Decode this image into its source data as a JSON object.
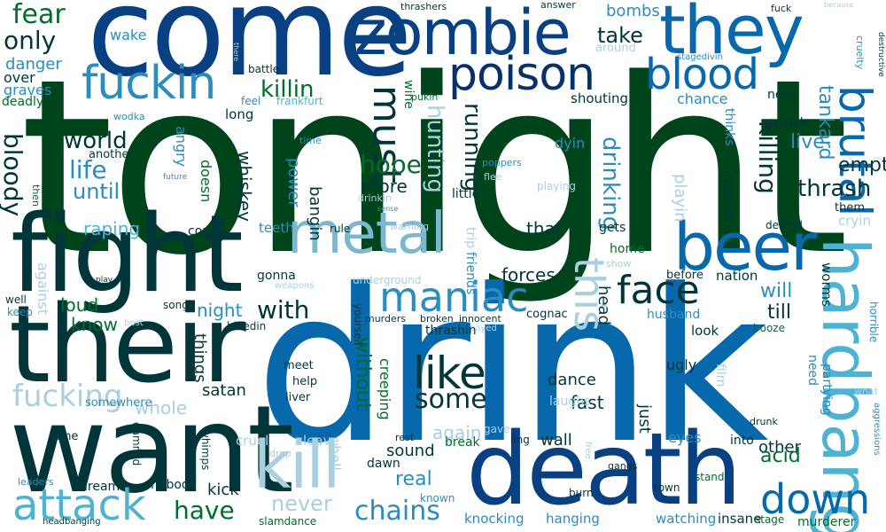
{
  "palette": {
    "darkest": "#00441b",
    "deep_green": "#003d2e",
    "navy": "#084081",
    "blue": "#0868ac",
    "teal": "#2b8cbe",
    "light_teal": "#4eb3d3",
    "pale": "#7bccc4",
    "paler": "#a8ddb5",
    "green": "#238b45"
  },
  "words": [
    {
      "text": "tonight",
      "color": "#00441b",
      "rot": 0
    },
    {
      "text": "drink",
      "color": "#0868ac",
      "rot": 0
    },
    {
      "text": "come",
      "color": "#084081",
      "rot": 0
    },
    {
      "text": "want",
      "color": "#00363a",
      "rot": 0
    },
    {
      "text": "their",
      "color": "#00363a",
      "rot": 0
    },
    {
      "text": "fight",
      "color": "#00363a",
      "rot": 0
    },
    {
      "text": "death",
      "color": "#084081",
      "rot": 0
    },
    {
      "text": "zombie",
      "color": "#084081",
      "rot": 0
    },
    {
      "text": "they",
      "color": "#0868ac",
      "rot": 0
    },
    {
      "text": "hardbang",
      "color": "#4eb3d3",
      "rot": 90
    },
    {
      "text": "beer",
      "color": "#0868ac",
      "rot": 0
    },
    {
      "text": "metal",
      "color": "#7bb8d0",
      "rot": 0
    },
    {
      "text": "kill",
      "color": "#a8d0e0",
      "rot": 0
    },
    {
      "text": "poison",
      "color": "#08306b",
      "rot": 0
    },
    {
      "text": "blood",
      "color": "#0868ac",
      "rot": 0
    },
    {
      "text": "fuckin",
      "color": "#2b8cbe",
      "rot": 0
    },
    {
      "text": "brutal",
      "color": "#0868ac",
      "rot": 90
    },
    {
      "text": "like",
      "color": "#00363a",
      "rot": 0
    },
    {
      "text": "maniac",
      "color": "#2b8cbe",
      "rot": 0
    },
    {
      "text": "attack",
      "color": "#4eb3d3",
      "rot": 0
    },
    {
      "text": "down",
      "color": "#0868ac",
      "rot": 0
    },
    {
      "text": "face",
      "color": "#00363a",
      "rot": 0
    },
    {
      "text": "this",
      "color": "#a8d0e0",
      "rot": 90
    },
    {
      "text": "must",
      "color": "#00363a",
      "rot": 90
    },
    {
      "text": "fucking",
      "color": "#a8d0e0",
      "rot": 0
    },
    {
      "text": "chains",
      "color": "#2b8cbe",
      "rot": 0
    },
    {
      "text": "never",
      "color": "#a8d0e0",
      "rot": 0
    },
    {
      "text": "have",
      "color": "#006d2c",
      "rot": 0
    },
    {
      "text": "some",
      "color": "#00363a",
      "rot": 0
    },
    {
      "text": "with",
      "color": "#00363a",
      "rot": 0
    },
    {
      "text": "killin",
      "color": "#006d2c",
      "rot": 0
    },
    {
      "text": "fear",
      "color": "#006d2c",
      "rot": 0
    },
    {
      "text": "only",
      "color": "#00363a",
      "rot": 0
    },
    {
      "text": "world",
      "color": "#00363a",
      "rot": 0
    },
    {
      "text": "life",
      "color": "#2b8cbe",
      "rot": 0
    },
    {
      "text": "bloody",
      "color": "#00363a",
      "rot": 90
    },
    {
      "text": "until",
      "color": "#2b8cbe",
      "rot": 0
    },
    {
      "text": "hope",
      "color": "#006d2c",
      "rot": 0
    },
    {
      "text": "more",
      "color": "#00363a",
      "rot": 0
    },
    {
      "text": "running",
      "color": "#00363a",
      "rot": 90
    },
    {
      "text": "hunting",
      "color": "#a8d0e0",
      "rot": 90
    },
    {
      "text": "drinking",
      "color": "#2b8cbe",
      "rot": 90
    },
    {
      "text": "killing",
      "color": "#00363a",
      "rot": 90
    },
    {
      "text": "thrash",
      "color": "#00363a",
      "rot": 0
    },
    {
      "text": "empty",
      "color": "#00363a",
      "rot": 0
    },
    {
      "text": "live",
      "color": "#2b8cbe",
      "rot": 0
    },
    {
      "text": "tankard",
      "color": "#2b8cbe",
      "rot": 90
    },
    {
      "text": "take",
      "color": "#00363a",
      "rot": 0
    },
    {
      "text": "bombs",
      "color": "#2b8cbe",
      "rot": 0
    },
    {
      "text": "wake",
      "color": "#2b8cbe",
      "rot": 0
    },
    {
      "text": "danger",
      "color": "#2b8cbe",
      "rot": 0
    },
    {
      "text": "over",
      "color": "#00363a",
      "rot": 0
    },
    {
      "text": "graves",
      "color": "#2b8cbe",
      "rot": 0
    },
    {
      "text": "deadly",
      "color": "#006d2c",
      "rot": 0
    },
    {
      "text": "wodka",
      "color": "#2b8cbe",
      "rot": 0
    },
    {
      "text": "another",
      "color": "#00363a",
      "rot": 0
    },
    {
      "text": "angry",
      "color": "#2b8cbe",
      "rot": 90
    },
    {
      "text": "doesn",
      "color": "#006d2c",
      "rot": 90
    },
    {
      "text": "whiskey",
      "color": "#00363a",
      "rot": 90
    },
    {
      "text": "power",
      "color": "#2b8cbe",
      "rot": 90
    },
    {
      "text": "bangin",
      "color": "#00363a",
      "rot": 90
    },
    {
      "text": "long",
      "color": "#00363a",
      "rot": 0
    },
    {
      "text": "feel",
      "color": "#2b8cbe",
      "rot": 0
    },
    {
      "text": "frankfurt",
      "color": "#4eb3d3",
      "rot": 0
    },
    {
      "text": "battle",
      "color": "#00363a",
      "rot": 0
    },
    {
      "text": "time",
      "color": "#2b8cbe",
      "rot": 0
    },
    {
      "text": "wine",
      "color": "#006d2c",
      "rot": 90
    },
    {
      "text": "pukin",
      "color": "#006d2c",
      "rot": 0
    },
    {
      "text": "shouting",
      "color": "#00363a",
      "rot": 0
    },
    {
      "text": "chance",
      "color": "#2b8cbe",
      "rot": 0
    },
    {
      "text": "near",
      "color": "#00363a",
      "rot": 0
    },
    {
      "text": "smash",
      "color": "#00363a",
      "rot": 0
    },
    {
      "text": "thinks",
      "color": "#2b8cbe",
      "rot": 90
    },
    {
      "text": "through",
      "color": "#00363a",
      "rot": 90
    },
    {
      "text": "playin",
      "color": "#a8d0e0",
      "rot": 90
    },
    {
      "text": "dyin",
      "color": "#2b8cbe",
      "rot": 0
    },
    {
      "text": "poppers",
      "color": "#2b8cbe",
      "rot": 0
    },
    {
      "text": "flee",
      "color": "#a8d0e0",
      "rot": 0
    },
    {
      "text": "playing",
      "color": "#a8d0e0",
      "rot": 0
    },
    {
      "text": "little",
      "color": "#00363a",
      "rot": 0
    },
    {
      "text": "drinkin",
      "color": "#a8d0e0",
      "rot": 0
    },
    {
      "text": "thrashers",
      "color": "#00363a",
      "rot": 0
    },
    {
      "text": "answer",
      "color": "#00363a",
      "rot": 0
    },
    {
      "text": "around",
      "color": "#a8d0e0",
      "rot": 0
    },
    {
      "text": "stagedivin",
      "color": "#2b8cbe",
      "rot": 0
    },
    {
      "text": "fuck",
      "color": "#00363a",
      "rot": 0
    },
    {
      "text": "because",
      "color": "#a8d0e0",
      "rot": 0
    },
    {
      "text": "cruelty",
      "color": "#2b8cbe",
      "rot": 90
    },
    {
      "text": "destructive",
      "color": "#00363a",
      "rot": 90
    },
    {
      "text": "there",
      "color": "#a8d0e0",
      "rot": 90
    },
    {
      "text": "future",
      "color": "#2b8cbe",
      "rot": 0
    },
    {
      "text": "then",
      "color": "#006d2c",
      "rot": 90
    },
    {
      "text": "sense",
      "color": "#2b8cbe",
      "rot": 0
    },
    {
      "text": "warning",
      "color": "#a8d0e0",
      "rot": 0
    },
    {
      "text": "raping",
      "color": "#4eb3d3",
      "rot": 0
    },
    {
      "text": "comin",
      "color": "#00363a",
      "rot": 0
    },
    {
      "text": "teeth",
      "color": "#2b8cbe",
      "rot": 0
    },
    {
      "text": "rule",
      "color": "#00363a",
      "rot": 0
    },
    {
      "text": "trip",
      "color": "#a8d0e0",
      "rot": 90
    },
    {
      "text": "friends",
      "color": "#2b8cbe",
      "rot": 90
    },
    {
      "text": "that",
      "color": "#00363a",
      "rot": 0
    },
    {
      "text": "gets",
      "color": "#00363a",
      "rot": 0
    },
    {
      "text": "home",
      "color": "#006d2c",
      "rot": 0
    },
    {
      "text": "show",
      "color": "#a8d0e0",
      "rot": 0
    },
    {
      "text": "forces",
      "color": "#00363a",
      "rot": 0
    },
    {
      "text": "underground",
      "color": "#a8d0e0",
      "rot": 0
    },
    {
      "text": "gonna",
      "color": "#00363a",
      "rot": 0
    },
    {
      "text": "weapons",
      "color": "#a8d0e0",
      "rot": 0
    },
    {
      "text": "head",
      "color": "#00363a",
      "rot": 90
    },
    {
      "text": "before",
      "color": "#00363a",
      "rot": 0
    },
    {
      "text": "nation",
      "color": "#00363a",
      "rot": 0
    },
    {
      "text": "will",
      "color": "#2b8cbe",
      "rot": 0
    },
    {
      "text": "till",
      "color": "#00363a",
      "rot": 0
    },
    {
      "text": "worms",
      "color": "#00363a",
      "rot": 90
    },
    {
      "text": "horrible",
      "color": "#2b8cbe",
      "rot": 90
    },
    {
      "text": "defend",
      "color": "#00363a",
      "rot": 0
    },
    {
      "text": "them",
      "color": "#00363a",
      "rot": 0
    },
    {
      "text": "cryin",
      "color": "#a8d0e0",
      "rot": 0
    },
    {
      "text": "play",
      "color": "#00363a",
      "rot": 0
    },
    {
      "text": "loud",
      "color": "#006d2c",
      "rot": 0
    },
    {
      "text": "know",
      "color": "#006d2c",
      "rot": 0
    },
    {
      "text": "night",
      "color": "#2b8cbe",
      "rot": 0
    },
    {
      "text": "song",
      "color": "#00363a",
      "rot": 0
    },
    {
      "text": "bleedin",
      "color": "#00363a",
      "rot": 0
    },
    {
      "text": "things",
      "color": "#00363a",
      "rot": 90
    },
    {
      "text": "against",
      "color": "#a8d0e0",
      "rot": 90
    },
    {
      "text": "well",
      "color": "#00363a",
      "rot": 0
    },
    {
      "text": "keep",
      "color": "#2b8cbe",
      "rot": 0
    },
    {
      "text": "best",
      "color": "#a8d0e0",
      "rot": 0
    },
    {
      "text": "yourself",
      "color": "#00363a",
      "rot": 90
    },
    {
      "text": "murders",
      "color": "#00363a",
      "rot": 0
    },
    {
      "text": "broken",
      "color": "#00363a",
      "rot": 0
    },
    {
      "text": "innocent",
      "color": "#00363a",
      "rot": 0
    },
    {
      "text": "cognac",
      "color": "#00363a",
      "rot": 0
    },
    {
      "text": "husband",
      "color": "#2b8cbe",
      "rot": 0
    },
    {
      "text": "payed",
      "color": "#a8d0e0",
      "rot": 0
    },
    {
      "text": "thrashin",
      "color": "#00363a",
      "rot": 0
    },
    {
      "text": "look",
      "color": "#00363a",
      "rot": 0
    },
    {
      "text": "booze",
      "color": "#006d2c",
      "rot": 0
    },
    {
      "text": "ugly",
      "color": "#00363a",
      "rot": 0
    },
    {
      "text": "need",
      "color": "#2b8cbe",
      "rot": 90
    },
    {
      "text": "partying",
      "color": "#2b8cbe",
      "rot": 90
    },
    {
      "text": "what",
      "color": "#a8d0e0",
      "rot": 0
    },
    {
      "text": "satan",
      "color": "#00363a",
      "rot": 0
    },
    {
      "text": "meet",
      "color": "#00363a",
      "rot": 0
    },
    {
      "text": "help",
      "color": "#00363a",
      "rot": 0
    },
    {
      "text": "liver",
      "color": "#00363a",
      "rot": 0
    },
    {
      "text": "without",
      "color": "#006d2c",
      "rot": 90
    },
    {
      "text": "creeping",
      "color": "#006d2c",
      "rot": 90
    },
    {
      "text": "dance",
      "color": "#00363a",
      "rot": 0
    },
    {
      "text": "fast",
      "color": "#00363a",
      "rot": 0
    },
    {
      "text": "laughs",
      "color": "#a8d0e0",
      "rot": 0
    },
    {
      "text": "film",
      "color": "#a8d0e0",
      "rot": 90
    },
    {
      "text": "whole",
      "color": "#a8d0e0",
      "rot": 0
    },
    {
      "text": "somewhere",
      "color": "#2b8cbe",
      "rot": 0
    },
    {
      "text": "again",
      "color": "#a8d0e0",
      "rot": 0
    },
    {
      "text": "gave",
      "color": "#a8d0e0",
      "rot": 0
    },
    {
      "text": "just",
      "color": "#00363a",
      "rot": 90
    },
    {
      "text": "aggressions",
      "color": "#2b8cbe",
      "rot": 90
    },
    {
      "text": "fine",
      "color": "#00363a",
      "rot": 0
    },
    {
      "text": "damned",
      "color": "#00363a",
      "rot": 90
    },
    {
      "text": "whimps",
      "color": "#00363a",
      "rot": 90
    },
    {
      "text": "cruel",
      "color": "#a8d0e0",
      "rot": 0
    },
    {
      "text": "leave",
      "color": "#a8d0e0",
      "rot": 0
    },
    {
      "text": "drop",
      "color": "#a8d0e0",
      "rot": 0
    },
    {
      "text": "hell",
      "color": "#a8d0e0",
      "rot": 90
    },
    {
      "text": "sound",
      "color": "#00363a",
      "rot": 0
    },
    {
      "text": "rest",
      "color": "#00363a",
      "rot": 0
    },
    {
      "text": "break",
      "color": "#006d2c",
      "rot": 0
    },
    {
      "text": "ling",
      "color": "#00363a",
      "rot": 0
    },
    {
      "text": "wall",
      "color": "#00363a",
      "rot": 0
    },
    {
      "text": "eyes",
      "color": "#2b8cbe",
      "rot": 0
    },
    {
      "text": "drunk",
      "color": "#00363a",
      "rot": 0
    },
    {
      "text": "free",
      "color": "#a8d0e0",
      "rot": 90
    },
    {
      "text": "gangs",
      "color": "#00363a",
      "rot": 0
    },
    {
      "text": "into",
      "color": "#00363a",
      "rot": 0
    },
    {
      "text": "other",
      "color": "#00363a",
      "rot": 0
    },
    {
      "text": "acid",
      "color": "#006d2c",
      "rot": 0
    },
    {
      "text": "leaders",
      "color": "#2b8cbe",
      "rot": 0
    },
    {
      "text": "dream",
      "color": "#00363a",
      "rot": 0
    },
    {
      "text": "nobody",
      "color": "#00363a",
      "rot": 0
    },
    {
      "text": "kick",
      "color": "#00363a",
      "rot": 0
    },
    {
      "text": "dawn",
      "color": "#00363a",
      "rot": 0
    },
    {
      "text": "real",
      "color": "#2b8cbe",
      "rot": 0
    },
    {
      "text": "known",
      "color": "#2b8cbe",
      "rot": 0
    },
    {
      "text": "burn",
      "color": "#00363a",
      "rot": 0
    },
    {
      "text": "stand",
      "color": "#006d2c",
      "rot": 0
    },
    {
      "text": "town",
      "color": "#00363a",
      "rot": 0
    },
    {
      "text": "headbanging",
      "color": "#00363a",
      "rot": 0
    },
    {
      "text": "slamdance",
      "color": "#006d2c",
      "rot": 0
    },
    {
      "text": "knocking",
      "color": "#2b8cbe",
      "rot": 0
    },
    {
      "text": "hanging",
      "color": "#2b8cbe",
      "rot": 0
    },
    {
      "text": "watching",
      "color": "#2b8cbe",
      "rot": 0
    },
    {
      "text": "insane",
      "color": "#00363a",
      "rot": 0
    },
    {
      "text": "stage",
      "color": "#006d2c",
      "rot": 0
    },
    {
      "text": "murderer",
      "color": "#006d2c",
      "rot": 0
    }
  ]
}
